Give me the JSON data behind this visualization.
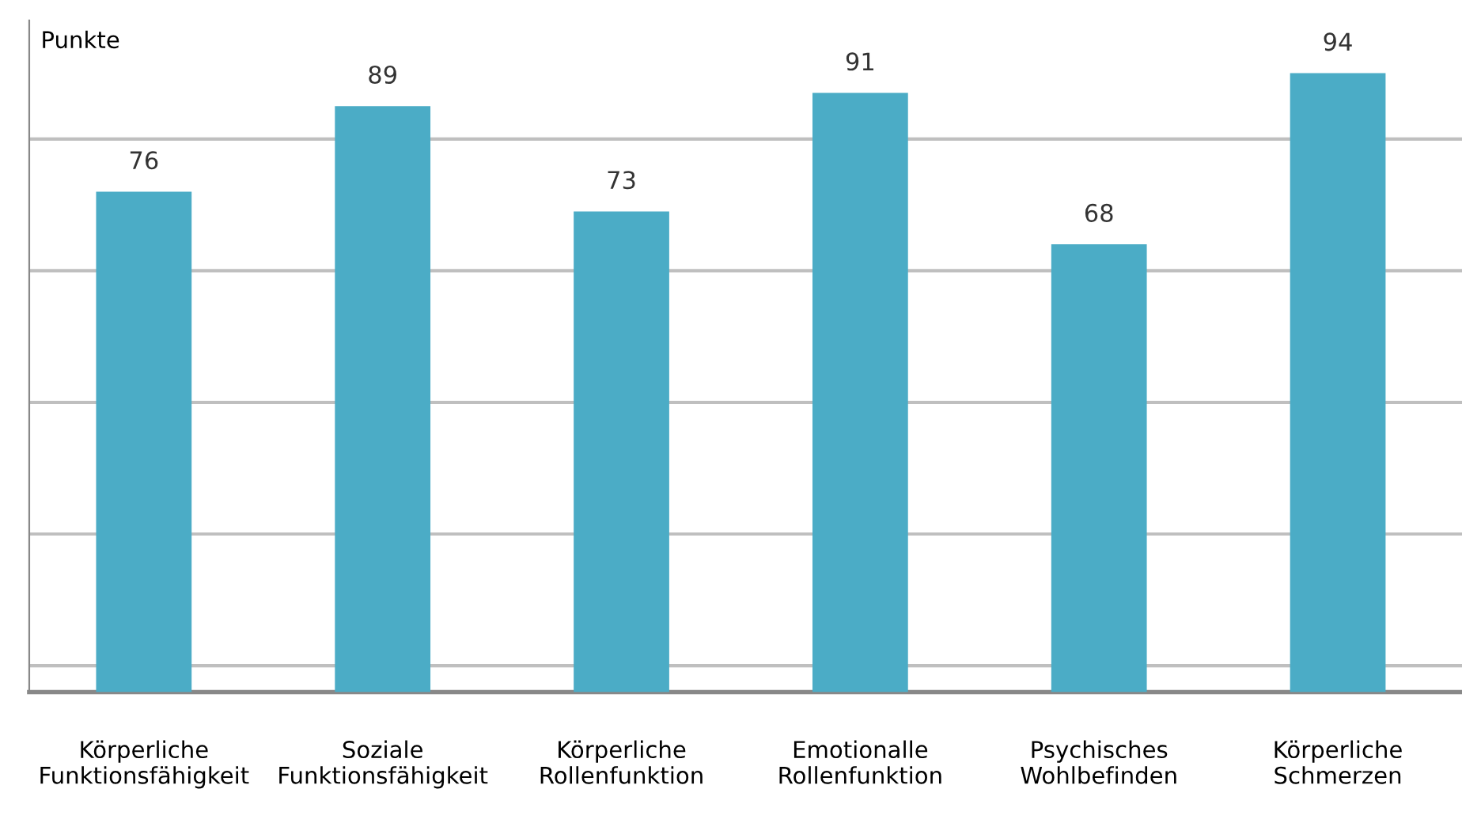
{
  "chart_data": {
    "type": "bar",
    "ylabel": "Punkte",
    "categories": [
      "Körperliche Funktionsfähigkeit",
      "Soziale Funktionsfähigkeit",
      "Körperliche Rollenfunktion",
      "Emotionalle Rollenfunktion",
      "Psychisches Wohlbefinden",
      "Körperliche Schmerzen"
    ],
    "values": [
      76,
      89,
      73,
      91,
      68,
      94
    ],
    "color": "#4bacc6",
    "ylim": [
      0,
      102
    ],
    "yticks": [
      {
        "value": 4,
        "label": null
      },
      {
        "value": 24,
        "label": null
      },
      {
        "value": 44,
        "label": null
      },
      {
        "value": 64,
        "label": null
      },
      {
        "value": 84,
        "label": null
      }
    ],
    "grid": "y",
    "data_labels": true
  }
}
